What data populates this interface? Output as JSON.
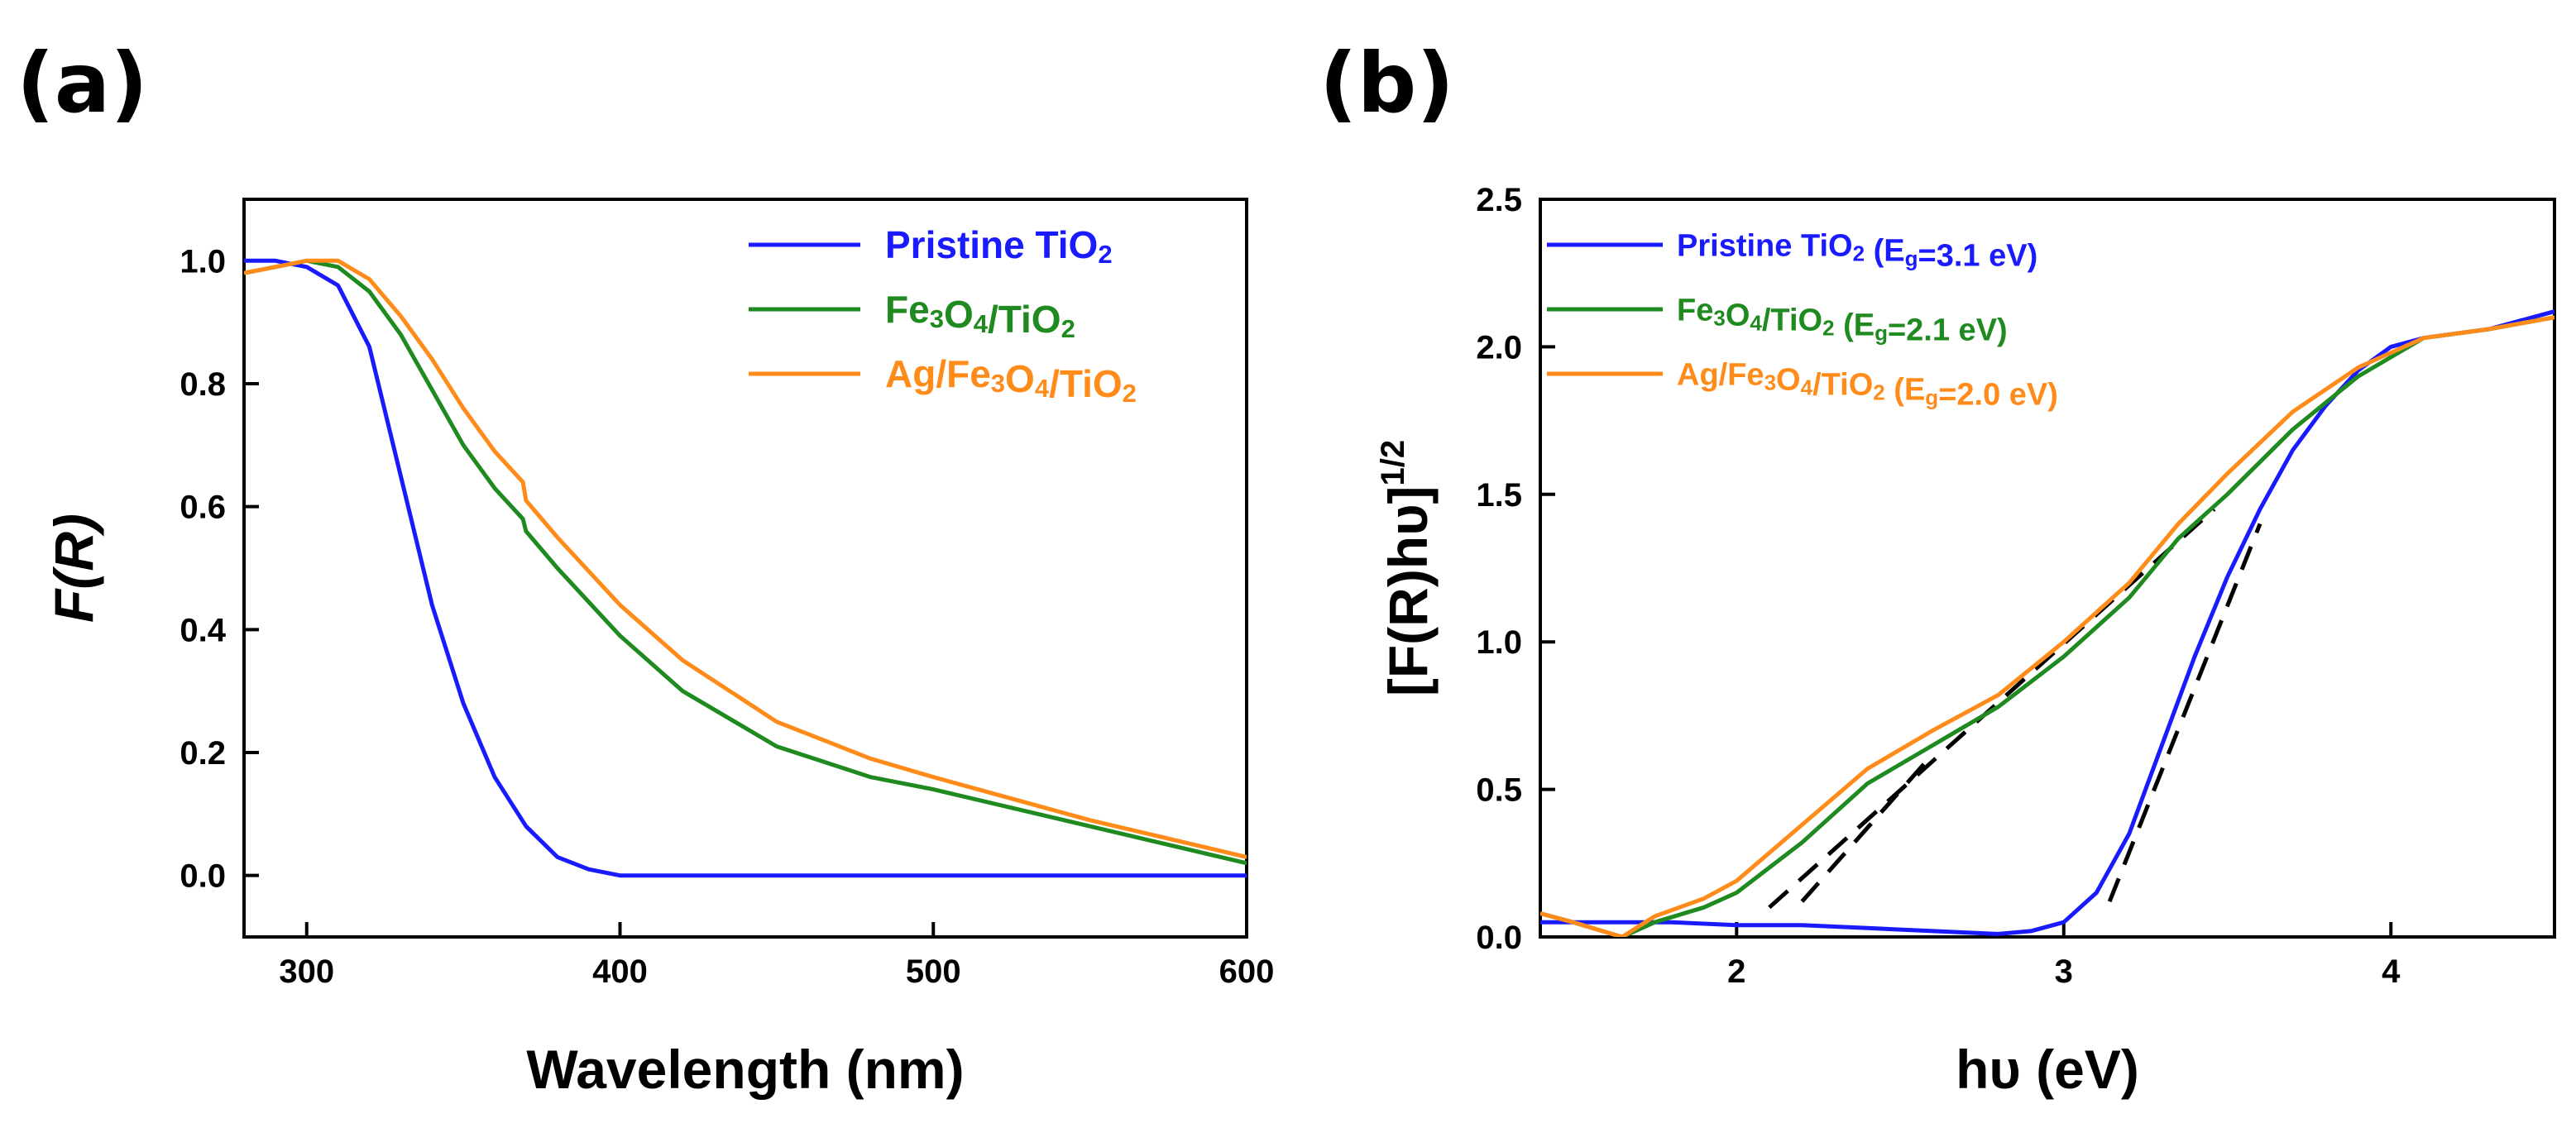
{
  "chart_data": [
    {
      "type": "line",
      "panel_label": "(a)",
      "xlabel": "Wavelength (nm)",
      "ylabel": "F(R)",
      "xlim": [
        280,
        600
      ],
      "ylim": [
        -0.1,
        1.1
      ],
      "xticks": [
        300,
        400,
        500,
        600
      ],
      "yticks": [
        0.0,
        0.2,
        0.4,
        0.6,
        0.8,
        1.0
      ],
      "xtick_labels": [
        "300",
        "400",
        "500",
        "600"
      ],
      "ytick_labels": [
        "0.0",
        "0.2",
        "0.4",
        "0.6",
        "0.8",
        "1.0"
      ],
      "legend_position": "top-right",
      "series": [
        {
          "name": "Pristine TiO2",
          "label_parts": [
            "Pristine TiO",
            "2"
          ],
          "color": "#1a1aff",
          "x": [
            280,
            290,
            300,
            310,
            320,
            330,
            340,
            350,
            360,
            370,
            380,
            390,
            400,
            420,
            450,
            500,
            550,
            600
          ],
          "y": [
            1.0,
            1.0,
            0.99,
            0.96,
            0.86,
            0.65,
            0.44,
            0.28,
            0.16,
            0.08,
            0.03,
            0.01,
            0.0,
            0.0,
            0.0,
            0.0,
            0.0,
            0.0
          ]
        },
        {
          "name": "Fe3O4/TiO2",
          "label_parts": [
            "Fe",
            "3",
            "O",
            "4",
            "/TiO",
            "2"
          ],
          "color": "#1f8a1f",
          "x": [
            280,
            290,
            300,
            310,
            320,
            330,
            340,
            350,
            360,
            369,
            370,
            380,
            400,
            420,
            450,
            480,
            500,
            550,
            600
          ],
          "y": [
            0.98,
            0.99,
            1.0,
            0.99,
            0.95,
            0.88,
            0.79,
            0.7,
            0.63,
            0.58,
            0.56,
            0.5,
            0.39,
            0.3,
            0.21,
            0.16,
            0.14,
            0.08,
            0.02
          ]
        },
        {
          "name": "Ag/Fe3O4/TiO2",
          "label_parts": [
            "Ag/Fe",
            "3",
            "O",
            "4",
            "/TiO",
            "2"
          ],
          "color": "#ff8c1a",
          "x": [
            280,
            290,
            300,
            310,
            320,
            330,
            340,
            350,
            360,
            369,
            370,
            380,
            400,
            420,
            450,
            480,
            500,
            550,
            600
          ],
          "y": [
            0.98,
            0.99,
            1.0,
            1.0,
            0.97,
            0.91,
            0.84,
            0.76,
            0.69,
            0.64,
            0.61,
            0.55,
            0.44,
            0.35,
            0.25,
            0.19,
            0.16,
            0.09,
            0.03
          ]
        }
      ]
    },
    {
      "type": "line",
      "panel_label": "(b)",
      "xlabel": "hυ (eV)",
      "ylabel": "[F(R)hυ]1/2",
      "ylabel_main": "[F(R)hυ]",
      "ylabel_sup": "1/2",
      "xlim": [
        1.4,
        4.5
      ],
      "ylim": [
        0.0,
        2.5
      ],
      "xticks": [
        2,
        3,
        4
      ],
      "yticks": [
        0.0,
        0.5,
        1.0,
        1.5,
        2.0,
        2.5
      ],
      "xtick_labels": [
        "2",
        "3",
        "4"
      ],
      "ytick_labels": [
        "0.0",
        "0.5",
        "1.0",
        "1.5",
        "2.0",
        "2.5"
      ],
      "legend_position": "top-left",
      "series": [
        {
          "name": "Pristine TiO2 (Eg=3.1 eV)",
          "label_parts": [
            "Pristine TiO",
            "2",
            " (E",
            "g",
            "=3.1 eV)"
          ],
          "color": "#1a1aff",
          "x": [
            1.4,
            1.6,
            1.8,
            2.0,
            2.2,
            2.4,
            2.6,
            2.8,
            2.9,
            3.0,
            3.1,
            3.2,
            3.3,
            3.4,
            3.5,
            3.6,
            3.7,
            3.8,
            3.9,
            4.0,
            4.1,
            4.3,
            4.5
          ],
          "y": [
            0.05,
            0.05,
            0.05,
            0.04,
            0.04,
            0.03,
            0.02,
            0.01,
            0.02,
            0.05,
            0.15,
            0.35,
            0.65,
            0.95,
            1.22,
            1.45,
            1.65,
            1.8,
            1.92,
            2.0,
            2.03,
            2.06,
            2.12
          ]
        },
        {
          "name": "Fe3O4/TiO2 (Eg=2.1 eV)",
          "label_parts": [
            "Fe",
            "3",
            "O",
            "4",
            "/TiO",
            "2",
            " (E",
            "g",
            "=2.1 eV)"
          ],
          "color": "#1f8a1f",
          "x": [
            1.4,
            1.5,
            1.65,
            1.75,
            1.9,
            2.0,
            2.2,
            2.4,
            2.6,
            2.8,
            3.0,
            3.2,
            3.35,
            3.5,
            3.7,
            3.9,
            4.1,
            4.3,
            4.5
          ],
          "y": [
            0.08,
            0.05,
            0.0,
            0.05,
            0.1,
            0.15,
            0.32,
            0.52,
            0.65,
            0.78,
            0.95,
            1.15,
            1.35,
            1.5,
            1.72,
            1.9,
            2.03,
            2.06,
            2.1
          ]
        },
        {
          "name": "Ag/Fe3O4/TiO2 (Eg=2.0 eV)",
          "label_parts": [
            "Ag/Fe",
            "3",
            "O",
            "4",
            "/TiO",
            "2",
            " (E",
            "g",
            "=2.0 eV)"
          ],
          "color": "#ff8c1a",
          "x": [
            1.4,
            1.5,
            1.65,
            1.75,
            1.9,
            2.0,
            2.2,
            2.4,
            2.6,
            2.8,
            3.0,
            3.2,
            3.35,
            3.5,
            3.7,
            3.9,
            4.1,
            4.3,
            4.5
          ],
          "y": [
            0.08,
            0.05,
            0.0,
            0.07,
            0.13,
            0.19,
            0.38,
            0.57,
            0.7,
            0.82,
            1.0,
            1.2,
            1.4,
            1.57,
            1.78,
            1.93,
            2.03,
            2.06,
            2.1
          ]
        }
      ],
      "fit_lines": [
        {
          "x": [
            2.1,
            3.46
          ],
          "y": [
            0.1,
            1.45
          ]
        },
        {
          "x": [
            2.2,
            2.6
          ],
          "y": [
            0.12,
            0.62
          ]
        },
        {
          "x": [
            3.14,
            3.6
          ],
          "y": [
            0.12,
            1.4
          ]
        }
      ]
    }
  ]
}
